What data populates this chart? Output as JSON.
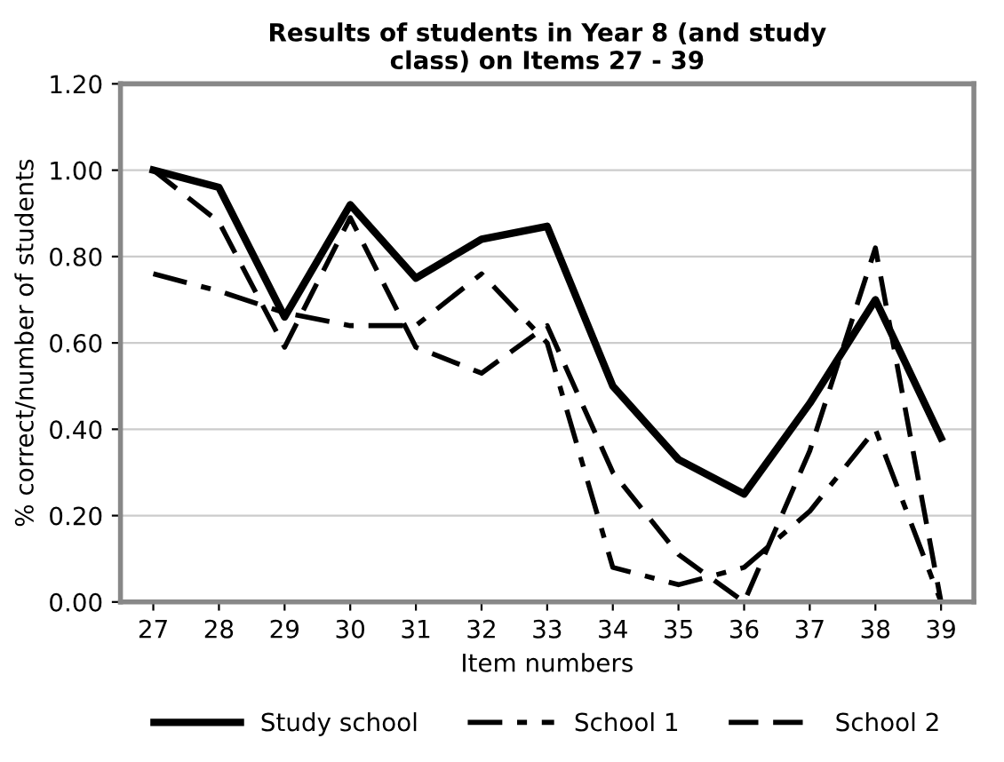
{
  "chart_data": {
    "type": "line",
    "title": "Results of students in Year 8 (and study\nclass) on Items 27 - 39",
    "xlabel": "Item numbers",
    "ylabel": "% correct/number of students",
    "categories": [
      "27",
      "28",
      "29",
      "30",
      "31",
      "32",
      "33",
      "34",
      "35",
      "36",
      "37",
      "38",
      "39"
    ],
    "series": [
      {
        "name": "Study school",
        "color": "#000000",
        "line_style": "solid",
        "values": [
          1.0,
          0.96,
          0.66,
          0.92,
          0.75,
          0.84,
          0.87,
          0.5,
          0.33,
          0.25,
          0.46,
          0.7,
          0.38
        ]
      },
      {
        "name": "School 1",
        "color": "#000000",
        "line_style": "dashdot",
        "values": [
          0.76,
          0.72,
          0.67,
          0.64,
          0.64,
          0.76,
          0.6,
          0.08,
          0.04,
          0.08,
          0.21,
          0.4,
          0.0
        ]
      },
      {
        "name": "School 2",
        "color": "#000000",
        "line_style": "dashed",
        "values": [
          1.0,
          0.88,
          0.59,
          0.89,
          0.59,
          0.53,
          0.64,
          0.3,
          0.11,
          0.0,
          0.35,
          0.82,
          0.0
        ]
      }
    ],
    "ylim": [
      0,
      1.2
    ],
    "yticks": [
      {
        "value": 0,
        "label": "0.00"
      },
      {
        "value": 0.2,
        "label": "0.20"
      },
      {
        "value": 0.4,
        "label": "0.40"
      },
      {
        "value": 0.6,
        "label": "0.60"
      },
      {
        "value": 0.8,
        "label": "0.80"
      },
      {
        "value": 1.0,
        "label": "1.00"
      },
      {
        "value": 1.2,
        "label": "1.20"
      }
    ],
    "grid": "y",
    "legend": "bottom",
    "marker": "none"
  }
}
